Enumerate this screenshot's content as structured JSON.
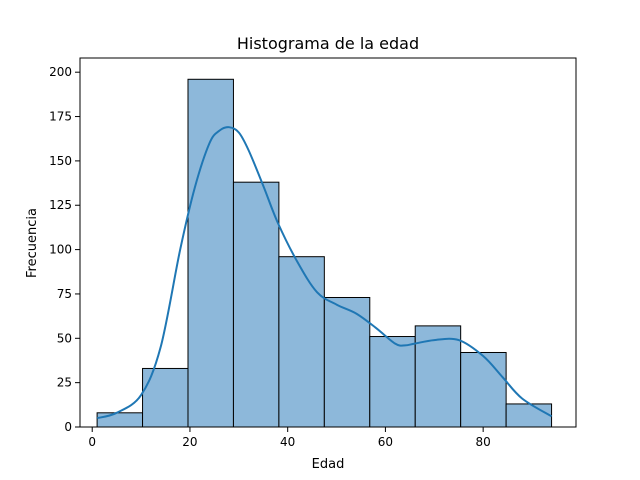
{
  "chart_data": {
    "type": "bar",
    "title": "Histograma de la edad",
    "xlabel": "Edad",
    "ylabel": "Frecuencia",
    "xlim": [
      -2.5,
      99
    ],
    "ylim": [
      0,
      208
    ],
    "xticks": [
      0,
      20,
      40,
      60,
      80
    ],
    "yticks": [
      0,
      25,
      50,
      75,
      100,
      125,
      150,
      175,
      200
    ],
    "bins": [
      {
        "x0": 1,
        "x1": 10.3,
        "value": 8
      },
      {
        "x0": 10.3,
        "x1": 19.6,
        "value": 33
      },
      {
        "x0": 19.6,
        "x1": 28.9,
        "value": 196
      },
      {
        "x0": 28.9,
        "x1": 38.2,
        "value": 138
      },
      {
        "x0": 38.2,
        "x1": 47.5,
        "value": 96
      },
      {
        "x0": 47.5,
        "x1": 56.8,
        "value": 73
      },
      {
        "x0": 56.8,
        "x1": 66.1,
        "value": 51
      },
      {
        "x0": 66.1,
        "x1": 75.4,
        "value": 57
      },
      {
        "x0": 75.4,
        "x1": 84.7,
        "value": 42
      },
      {
        "x0": 84.7,
        "x1": 94,
        "value": 13
      }
    ],
    "kde": {
      "x": [
        1,
        5,
        10,
        14,
        18,
        21,
        24,
        26,
        28,
        30,
        32,
        35,
        38,
        42,
        46,
        50,
        54,
        58,
        62,
        64,
        66,
        70,
        75,
        80,
        84,
        88,
        94
      ],
      "y": [
        5,
        8,
        18,
        45,
        100,
        135,
        160,
        167,
        169,
        166,
        156,
        136,
        115,
        93,
        76,
        69,
        64,
        56,
        47,
        46,
        47,
        49,
        49,
        40,
        28,
        16,
        6
      ]
    },
    "grid": false,
    "legend": "none",
    "colors": {
      "bar_fill": "#8db8da",
      "bar_edge": "#000000",
      "kde_line": "#1f77b4"
    }
  }
}
